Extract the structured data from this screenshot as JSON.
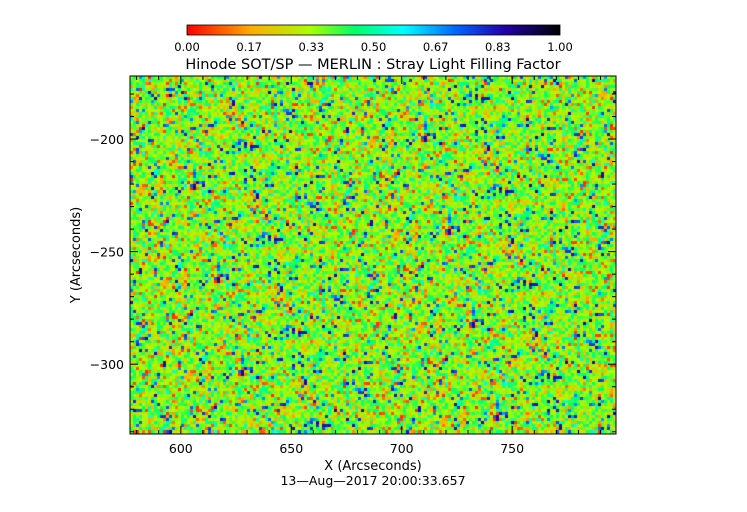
{
  "chart_data": {
    "type": "heatmap",
    "title": "Hinode SOT/SP — MERLIN : Stray Light Filling Factor",
    "xlabel": "X (Arcseconds)",
    "ylabel": "Y (Arcseconds)",
    "timestamp": "13—Aug—2017 20:00:33.657",
    "xlim": [
      577,
      797
    ],
    "ylim": [
      -331,
      -172
    ],
    "x_ticks": [
      600,
      650,
      700,
      750
    ],
    "x_tick_labels": [
      "600",
      "650",
      "700",
      "750"
    ],
    "y_ticks": [
      -200,
      -250,
      -300
    ],
    "y_tick_labels": [
      "−200",
      "−250",
      "−300"
    ],
    "colorbar": {
      "range": [
        0,
        1
      ],
      "tick_values": [
        0.0,
        0.1667,
        0.3333,
        0.5,
        0.6667,
        0.8333,
        1.0
      ],
      "tick_labels": [
        "0.00",
        "0.17",
        "0.33",
        "0.50",
        "0.67",
        "0.83",
        "1.00"
      ],
      "colors": [
        "#ff0000",
        "#ffff00",
        "#00ff00",
        "#00ffff",
        "#0000ff",
        "#000000"
      ]
    },
    "dominant_value_range": [
      0.2,
      0.5
    ],
    "grid": false
  }
}
